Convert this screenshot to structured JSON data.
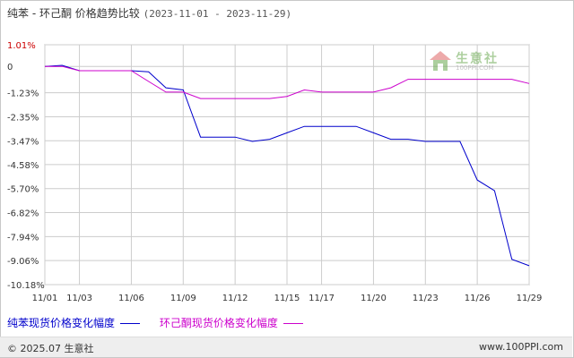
{
  "title": {
    "text": "纯苯 - 环己酮 价格趋势比较",
    "range": "(2023-11-01 - 2023-11-29)"
  },
  "watermark": {
    "brand": "生意社",
    "url": "100PPI.COM"
  },
  "footer": {
    "copyright": "© 2025.07 生意社",
    "site": "www.100PPI.com"
  },
  "colors": {
    "benzene": "#0000cc",
    "cyclohexanone": "#cc00cc",
    "grid": "#cccccc",
    "top_tick": "#cc0000"
  },
  "chart_data": {
    "type": "line",
    "title": "纯苯 - 环己酮 价格趋势比较",
    "x": [
      "11/01",
      "11/02",
      "11/03",
      "11/04",
      "11/05",
      "11/06",
      "11/07",
      "11/08",
      "11/09",
      "11/10",
      "11/11",
      "11/12",
      "11/13",
      "11/14",
      "11/15",
      "11/16",
      "11/17",
      "11/18",
      "11/19",
      "11/20",
      "11/21",
      "11/22",
      "11/23",
      "11/24",
      "11/25",
      "11/26",
      "11/27",
      "11/28",
      "11/29"
    ],
    "x_tick_labels": [
      "11/01",
      "11/03",
      "11/06",
      "11/09",
      "11/12",
      "11/15",
      "11/17",
      "11/20",
      "11/23",
      "11/26",
      "11/29"
    ],
    "y_tick_labels": [
      "1.01%",
      "0",
      "-1.23%",
      "-2.35%",
      "-3.47%",
      "-4.58%",
      "-5.70%",
      "-6.82%",
      "-7.94%",
      "-9.06%",
      "-10.18%"
    ],
    "y_ticks": [
      1.01,
      0,
      -1.23,
      -2.35,
      -3.47,
      -4.58,
      -5.7,
      -6.82,
      -7.94,
      -9.06,
      -10.18
    ],
    "ylim": [
      -10.18,
      1.01
    ],
    "grid": true,
    "legend_position": "bottom",
    "series": [
      {
        "name": "纯苯现货价格变化幅度",
        "values": [
          0.0,
          0.05,
          -0.2,
          -0.2,
          -0.2,
          -0.2,
          -0.25,
          -1.0,
          -1.1,
          -3.3,
          -3.3,
          -3.3,
          -3.5,
          -3.4,
          -3.1,
          -2.8,
          -2.8,
          -2.8,
          -2.8,
          -3.1,
          -3.4,
          -3.4,
          -3.5,
          -3.5,
          -3.5,
          -5.3,
          -5.8,
          -9.0,
          -9.3
        ]
      },
      {
        "name": "环己酮现货价格变化幅度",
        "values": [
          0.0,
          0.0,
          -0.2,
          -0.2,
          -0.2,
          -0.2,
          -0.7,
          -1.2,
          -1.2,
          -1.5,
          -1.5,
          -1.5,
          -1.5,
          -1.5,
          -1.4,
          -1.1,
          -1.2,
          -1.2,
          -1.2,
          -1.2,
          -1.0,
          -0.6,
          -0.6,
          -0.6,
          -0.6,
          -0.6,
          -0.6,
          -0.6,
          -0.8
        ]
      }
    ]
  }
}
